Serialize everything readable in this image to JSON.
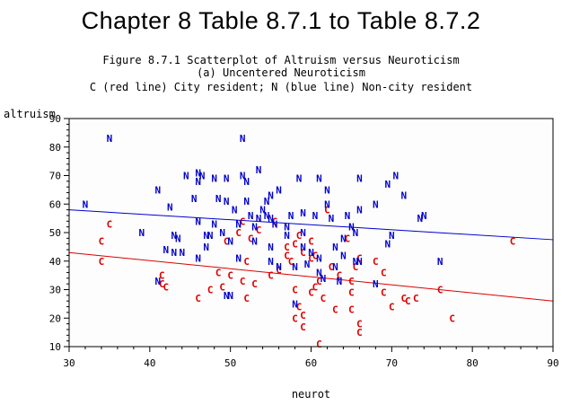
{
  "header": {
    "title": "Chapter 8 Table 8.7.1 to Table 8.7.2",
    "subtitle_1": "Figure 8.7.1 Scatterplot of Altruism versus Neuroticism",
    "subtitle_2": "(a) Uncentered Neuroticism",
    "subtitle_3": "C (red line) City resident; N (blue line) Non-city resident"
  },
  "colors": {
    "city": "#dd0000",
    "noncity": "#0000cc",
    "frame": "#000000",
    "plot_bg": "#fcfdfc"
  },
  "chart_data": {
    "type": "scatter",
    "xlabel": "neurot",
    "ylabel": "altruism",
    "xlim": [
      30,
      90
    ],
    "ylim": [
      10,
      90
    ],
    "x_ticks": [
      "30",
      "40",
      "50",
      "60",
      "70",
      "80",
      "90"
    ],
    "y_ticks": [
      "10",
      "20",
      "30",
      "40",
      "50",
      "60",
      "70",
      "80",
      "90"
    ],
    "grid": false,
    "series": [
      {
        "name": "C",
        "color": "#dd0000",
        "fit_line": {
          "x": [
            30,
            90
          ],
          "y": [
            43.0,
            26.0
          ]
        },
        "points": [
          [
            35,
            53
          ],
          [
            34,
            47
          ],
          [
            34,
            40
          ],
          [
            41.5,
            35
          ],
          [
            42,
            31
          ],
          [
            41.5,
            32
          ],
          [
            46,
            27
          ],
          [
            47.5,
            30
          ],
          [
            48.5,
            36
          ],
          [
            49,
            31
          ],
          [
            50,
            35
          ],
          [
            49.5,
            47
          ],
          [
            51,
            50
          ],
          [
            51.5,
            54
          ],
          [
            52,
            40
          ],
          [
            51.5,
            33
          ],
          [
            52,
            27
          ],
          [
            53,
            32
          ],
          [
            52.5,
            48
          ],
          [
            53.5,
            51
          ],
          [
            55,
            35
          ],
          [
            56,
            37
          ],
          [
            55.5,
            54
          ],
          [
            57,
            45
          ],
          [
            57,
            42
          ],
          [
            57.5,
            40
          ],
          [
            58,
            30
          ],
          [
            58,
            20
          ],
          [
            58.5,
            24
          ],
          [
            59,
            21
          ],
          [
            59,
            17
          ],
          [
            58,
            46
          ],
          [
            58.5,
            49
          ],
          [
            59,
            43
          ],
          [
            60,
            41
          ],
          [
            60,
            47
          ],
          [
            60.5,
            42
          ],
          [
            60.5,
            31
          ],
          [
            61,
            33
          ],
          [
            61,
            11
          ],
          [
            60,
            29
          ],
          [
            61.5,
            27
          ],
          [
            62,
            58
          ],
          [
            62.5,
            38
          ],
          [
            63,
            23
          ],
          [
            63.5,
            35
          ],
          [
            64.5,
            48
          ],
          [
            65,
            33
          ],
          [
            65,
            29
          ],
          [
            65.5,
            38
          ],
          [
            65,
            23
          ],
          [
            66,
            18
          ],
          [
            66,
            15
          ],
          [
            66,
            41
          ],
          [
            68,
            40
          ],
          [
            69,
            36
          ],
          [
            69,
            29
          ],
          [
            70,
            24
          ],
          [
            71.5,
            27
          ],
          [
            72,
            26
          ],
          [
            73,
            27
          ],
          [
            76,
            30
          ],
          [
            77.5,
            20
          ],
          [
            85,
            47
          ]
        ]
      },
      {
        "name": "N",
        "color": "#0000cc",
        "fit_line": {
          "x": [
            30,
            90
          ],
          "y": [
            58.0,
            47.5
          ]
        },
        "points": [
          [
            32,
            60
          ],
          [
            35,
            83
          ],
          [
            39,
            50
          ],
          [
            41,
            65
          ],
          [
            41,
            33
          ],
          [
            42,
            44
          ],
          [
            43,
            43
          ],
          [
            43.5,
            48
          ],
          [
            42.5,
            59
          ],
          [
            43,
            49
          ],
          [
            44,
            43
          ],
          [
            44.5,
            70
          ],
          [
            45.5,
            62
          ],
          [
            46,
            68
          ],
          [
            46,
            71
          ],
          [
            46.5,
            70
          ],
          [
            47,
            49
          ],
          [
            46,
            54
          ],
          [
            46,
            41
          ],
          [
            47,
            45
          ],
          [
            47.5,
            49
          ],
          [
            48,
            53
          ],
          [
            48.5,
            62
          ],
          [
            48,
            69
          ],
          [
            49,
            50
          ],
          [
            49.5,
            28
          ],
          [
            49.5,
            61
          ],
          [
            49.5,
            69
          ],
          [
            50,
            28
          ],
          [
            50.5,
            58
          ],
          [
            50,
            47
          ],
          [
            51,
            53
          ],
          [
            51,
            41
          ],
          [
            51.5,
            83
          ],
          [
            51.5,
            70
          ],
          [
            52,
            68
          ],
          [
            52,
            61
          ],
          [
            52.5,
            56
          ],
          [
            53,
            52
          ],
          [
            53,
            47
          ],
          [
            53.5,
            72
          ],
          [
            53.5,
            55
          ],
          [
            54,
            58
          ],
          [
            54.5,
            56
          ],
          [
            54.5,
            61
          ],
          [
            55,
            55
          ],
          [
            55,
            63
          ],
          [
            55.5,
            53
          ],
          [
            55,
            45
          ],
          [
            55,
            40
          ],
          [
            56,
            38
          ],
          [
            56,
            65
          ],
          [
            57,
            49
          ],
          [
            57,
            52
          ],
          [
            57.5,
            56
          ],
          [
            58,
            38
          ],
          [
            58,
            25
          ],
          [
            58.5,
            69
          ],
          [
            59,
            57
          ],
          [
            59,
            50
          ],
          [
            59,
            45
          ],
          [
            59.5,
            39
          ],
          [
            60,
            43
          ],
          [
            60.5,
            56
          ],
          [
            61,
            69
          ],
          [
            61,
            36
          ],
          [
            61,
            41
          ],
          [
            61.5,
            34
          ],
          [
            62,
            65
          ],
          [
            62,
            60
          ],
          [
            62.5,
            55
          ],
          [
            63,
            45
          ],
          [
            63,
            38
          ],
          [
            63.5,
            33
          ],
          [
            64,
            42
          ],
          [
            64,
            48
          ],
          [
            64.5,
            56
          ],
          [
            65,
            52
          ],
          [
            65.5,
            50
          ],
          [
            65.5,
            40
          ],
          [
            66,
            58
          ],
          [
            66,
            69
          ],
          [
            66,
            40
          ],
          [
            68,
            32
          ],
          [
            68,
            60
          ],
          [
            69.5,
            67
          ],
          [
            69.5,
            46
          ],
          [
            70,
            49
          ],
          [
            71.5,
            63
          ],
          [
            73.5,
            55
          ],
          [
            74,
            56
          ],
          [
            76,
            40
          ],
          [
            70.5,
            70
          ]
        ]
      }
    ]
  }
}
